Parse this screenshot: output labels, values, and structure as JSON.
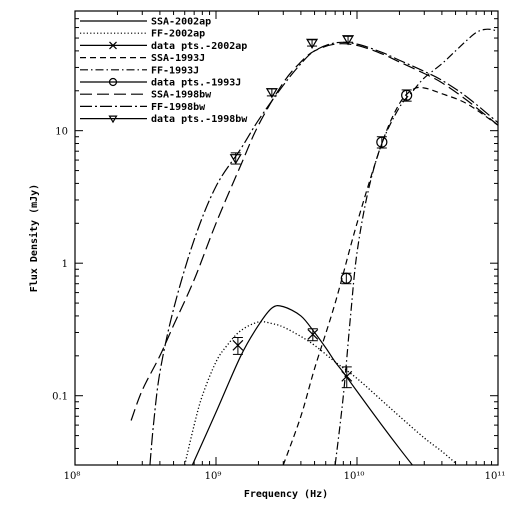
{
  "chart_data": {
    "type": "line",
    "xlabel": "Frequency (Hz)",
    "ylabel": "Flux Density (mJy)",
    "xscale": "log",
    "yscale": "log",
    "xlim": [
      100000000.0,
      100000000000.0
    ],
    "ylim": [
      0.03,
      80
    ],
    "x_ticks": [
      {
        "value": 100000000.0,
        "label": "10⁸"
      },
      {
        "value": 1000000000.0,
        "label": "10⁹"
      },
      {
        "value": 10000000000.0,
        "label": "10¹⁰"
      },
      {
        "value": 100000000000.0,
        "label": "10¹¹"
      }
    ],
    "y_ticks": [
      {
        "value": 0.1,
        "label": "0.1"
      },
      {
        "value": 1,
        "label": "1"
      },
      {
        "value": 10,
        "label": "10"
      }
    ],
    "legend_position": "top-left",
    "legend": [
      {
        "label": "SSA-2002ap",
        "style": "solid",
        "marker": ""
      },
      {
        "label": "FF-2002ap",
        "style": "dotted",
        "marker": ""
      },
      {
        "label": "data pts.-2002ap",
        "style": "solid",
        "marker": "x"
      },
      {
        "label": "SSA-1993J",
        "style": "dashed",
        "marker": ""
      },
      {
        "label": "FF-1993J",
        "style": "dashdot",
        "marker": ""
      },
      {
        "label": "data pts.-1993J",
        "style": "solid",
        "marker": "o"
      },
      {
        "label": "SSA-1998bw",
        "style": "longdash",
        "marker": ""
      },
      {
        "label": "FF-1998bw",
        "style": "dashdotlong",
        "marker": ""
      },
      {
        "label": "data pts.-1998bw",
        "style": "solid",
        "marker": "v"
      }
    ],
    "series": [
      {
        "name": "SSA-2002ap",
        "style": "solid",
        "x": [
          680000000.0,
          1000000000.0,
          1500000000.0,
          2000000000.0,
          2500000000.0,
          3000000000.0,
          4000000000.0,
          5000000000.0,
          6000000000.0,
          7000000000.0,
          8000000000.0,
          10000000000.0,
          15000000000.0,
          20000000000.0,
          26000000000.0
        ],
        "y": [
          0.03,
          0.075,
          0.2,
          0.34,
          0.46,
          0.47,
          0.4,
          0.3,
          0.23,
          0.18,
          0.15,
          0.108,
          0.06,
          0.04,
          0.028
        ]
      },
      {
        "name": "FF-2002ap",
        "style": "dotted",
        "x": [
          600000000.0,
          700000000.0,
          800000000.0,
          1000000000.0,
          1200000000.0,
          1500000000.0,
          2000000000.0,
          2500000000.0,
          3000000000.0,
          4000000000.0,
          5000000000.0,
          7000000000.0,
          10000000000.0,
          15000000000.0,
          20000000000.0,
          30000000000.0,
          40000000000.0,
          50000000000.0
        ],
        "y": [
          0.03,
          0.06,
          0.1,
          0.18,
          0.24,
          0.31,
          0.36,
          0.35,
          0.33,
          0.28,
          0.24,
          0.18,
          0.135,
          0.092,
          0.07,
          0.048,
          0.038,
          0.031
        ]
      },
      {
        "name": "SSA-1993J",
        "style": "dashed",
        "x": [
          3000000000.0,
          4000000000.0,
          5000000000.0,
          7000000000.0,
          10000000000.0,
          15000000000.0,
          20000000000.0,
          25000000000.0,
          30000000000.0,
          40000000000.0,
          60000000000.0,
          100000000000.0
        ],
        "y": [
          0.03,
          0.07,
          0.16,
          0.5,
          2,
          8,
          16,
          20.5,
          21,
          19,
          16,
          11
        ]
      },
      {
        "name": "FF-1993J",
        "style": "dashdot",
        "x": [
          7000000000.0,
          8000000000.0,
          9000000000.0,
          10000000000.0,
          12000000000.0,
          15000000000.0,
          20000000000.0,
          25000000000.0,
          30000000000.0,
          40000000000.0,
          50000000000.0,
          60000000000.0,
          70000000000.0,
          80000000000.0,
          90000000000.0,
          100000000000.0
        ],
        "y": [
          0.03,
          0.1,
          0.4,
          1.2,
          3.5,
          8,
          15,
          20,
          25,
          32,
          40,
          48,
          55,
          58,
          58,
          56
        ]
      },
      {
        "name": "SSA-1998bw",
        "style": "longdash",
        "x": [
          250000000.0,
          300000000.0,
          400000000.0,
          500000000.0,
          700000000.0,
          1000000000.0,
          1500000000.0,
          2000000000.0,
          3000000000.0,
          4000000000.0,
          5000000000.0,
          7000000000.0,
          10000000000.0,
          15000000000.0,
          20000000000.0,
          30000000000.0,
          40000000000.0,
          60000000000.0,
          100000000000.0
        ],
        "y": [
          0.065,
          0.11,
          0.2,
          0.34,
          0.75,
          2,
          5.5,
          11,
          23,
          33,
          40,
          45,
          44,
          38,
          33,
          27,
          23,
          17,
          11
        ]
      },
      {
        "name": "FF-1998bw",
        "style": "dashdotlong",
        "x": [
          340000000.0,
          360000000.0,
          400000000.0,
          500000000.0,
          700000000.0,
          1000000000.0,
          1500000000.0,
          2000000000.0,
          3000000000.0,
          4000000000.0,
          5000000000.0,
          7000000000.0,
          10000000000.0,
          15000000000.0,
          20000000000.0,
          30000000000.0,
          40000000000.0,
          60000000000.0,
          100000000000.0
        ],
        "y": [
          0.03,
          0.06,
          0.15,
          0.45,
          1.5,
          3.8,
          7.3,
          12,
          22,
          32,
          40,
          46,
          45,
          39,
          34,
          28,
          24,
          18,
          11.5
        ]
      }
    ],
    "data_points": [
      {
        "name": "data pts.-2002ap",
        "marker": "x",
        "x": [
          1430000000.0,
          4860000000.0,
          8460000000.0
        ],
        "y": [
          0.24,
          0.29,
          0.14
        ],
        "yerr_low": [
          0.035,
          0.03,
          0.025
        ],
        "yerr_high": [
          0.035,
          0.03,
          0.025
        ]
      },
      {
        "name": "data pts.-1993J",
        "marker": "o",
        "x": [
          8400000000.0,
          15000000000.0,
          22500000000.0
        ],
        "y": [
          0.77,
          8.2,
          18.5
        ],
        "yerr_low": [
          0.07,
          0.8,
          1.8
        ],
        "yerr_high": [
          0.07,
          0.8,
          1.8
        ]
      },
      {
        "name": "data pts.-1998bw",
        "marker": "v",
        "x": [
          1380000000.0,
          2490000000.0,
          4800000000.0,
          8640000000.0
        ],
        "y": [
          6.2,
          19.5,
          46,
          49
        ],
        "yerr_low": [
          0.6,
          1.2,
          2.5,
          2.5
        ],
        "yerr_high": [
          0.6,
          1.2,
          2.5,
          2.5
        ]
      }
    ]
  }
}
